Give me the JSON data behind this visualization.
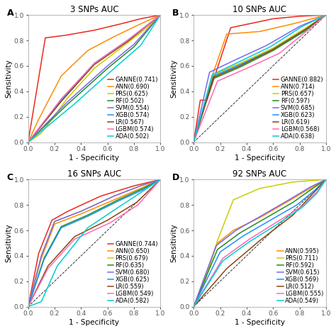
{
  "panels": [
    {
      "label": "A",
      "title": "3 SNPs AUC",
      "has_diagonal": false,
      "curves": [
        {
          "name": "GANNE(0.741)",
          "color": "#e8291c",
          "x": [
            0,
            0.13,
            0.28,
            0.5,
            0.7,
            0.85,
            1.0
          ],
          "y": [
            0,
            0.82,
            0.84,
            0.88,
            0.93,
            0.97,
            1.0
          ]
        },
        {
          "name": "ANN(0.690)",
          "color": "#ff8c00",
          "x": [
            0,
            0.08,
            0.25,
            0.45,
            0.65,
            0.85,
            1.0
          ],
          "y": [
            0,
            0.18,
            0.52,
            0.72,
            0.83,
            0.93,
            1.0
          ]
        },
        {
          "name": "PRS(0.625)",
          "color": "#cccc00",
          "x": [
            0,
            0.1,
            0.3,
            0.5,
            0.7,
            0.9,
            1.0
          ],
          "y": [
            0,
            0.07,
            0.35,
            0.58,
            0.74,
            0.9,
            1.0
          ]
        },
        {
          "name": "RF(0.502)",
          "color": "#228b22",
          "x": [
            0,
            0.3,
            0.6,
            0.8,
            1.0
          ],
          "y": [
            0,
            0.3,
            0.58,
            0.75,
            1.0
          ]
        },
        {
          "name": "SVM(0.554)",
          "color": "#7b68ee",
          "x": [
            0,
            0.3,
            0.6,
            0.8,
            1.0
          ],
          "y": [
            0,
            0.32,
            0.6,
            0.77,
            1.0
          ]
        },
        {
          "name": "XGB(0.574)",
          "color": "#1e90ff",
          "x": [
            0,
            0.25,
            0.5,
            0.75,
            1.0
          ],
          "y": [
            0,
            0.33,
            0.62,
            0.8,
            1.0
          ]
        },
        {
          "name": "LR(0.567)",
          "color": "#8b4513",
          "x": [
            0,
            0.25,
            0.5,
            0.75,
            1.0
          ],
          "y": [
            0,
            0.32,
            0.61,
            0.79,
            1.0
          ]
        },
        {
          "name": "LGBM(0.574)",
          "color": "#ff69b4",
          "x": [
            0,
            0.25,
            0.5,
            0.75,
            1.0
          ],
          "y": [
            0,
            0.34,
            0.62,
            0.8,
            1.0
          ]
        },
        {
          "name": "ADA(0.502)",
          "color": "#00ced1",
          "x": [
            0,
            0.35,
            0.65,
            0.85,
            1.0
          ],
          "y": [
            0,
            0.3,
            0.58,
            0.76,
            1.0
          ]
        }
      ]
    },
    {
      "label": "B",
      "title": "10 SNPs AUC",
      "has_diagonal": true,
      "curves": [
        {
          "name": "GANNE(0.882)",
          "color": "#e8291c",
          "x": [
            0,
            0.05,
            0.1,
            0.28,
            0.6,
            0.8,
            1.0
          ],
          "y": [
            0,
            0.33,
            0.33,
            0.9,
            0.97,
            0.99,
            1.0
          ]
        },
        {
          "name": "ANN(0.714)",
          "color": "#ff8c00",
          "x": [
            0,
            0.15,
            0.25,
            0.5,
            0.75,
            1.0
          ],
          "y": [
            0,
            0.55,
            0.85,
            0.87,
            0.93,
            1.0
          ]
        },
        {
          "name": "PRS(0.657)",
          "color": "#cccc00",
          "x": [
            0,
            0.15,
            0.35,
            0.6,
            0.85,
            1.0
          ],
          "y": [
            0,
            0.53,
            0.62,
            0.74,
            0.9,
            1.0
          ]
        },
        {
          "name": "RF(0.597)",
          "color": "#228b22",
          "x": [
            0,
            0.15,
            0.35,
            0.6,
            0.85,
            1.0
          ],
          "y": [
            0,
            0.5,
            0.59,
            0.72,
            0.88,
            1.0
          ]
        },
        {
          "name": "SVM(0.685)",
          "color": "#7b68ee",
          "x": [
            0,
            0.12,
            0.3,
            0.55,
            0.8,
            1.0
          ],
          "y": [
            0,
            0.55,
            0.64,
            0.76,
            0.91,
            1.0
          ]
        },
        {
          "name": "XGB(0.623)",
          "color": "#1e90ff",
          "x": [
            0,
            0.15,
            0.35,
            0.6,
            0.85,
            1.0
          ],
          "y": [
            0,
            0.52,
            0.61,
            0.73,
            0.89,
            1.0
          ]
        },
        {
          "name": "LR(0.619)",
          "color": "#8b4513",
          "x": [
            0,
            0.15,
            0.35,
            0.6,
            0.85,
            1.0
          ],
          "y": [
            0,
            0.51,
            0.6,
            0.73,
            0.89,
            1.0
          ]
        },
        {
          "name": "LGBM(0.568)",
          "color": "#ff69b4",
          "x": [
            0,
            0.18,
            0.4,
            0.65,
            0.85,
            1.0
          ],
          "y": [
            0,
            0.48,
            0.58,
            0.7,
            0.87,
            1.0
          ]
        },
        {
          "name": "ADA(0.638)",
          "color": "#00ced1",
          "x": [
            0,
            0.14,
            0.32,
            0.58,
            0.82,
            1.0
          ],
          "y": [
            0,
            0.53,
            0.62,
            0.75,
            0.91,
            1.0
          ]
        }
      ]
    },
    {
      "label": "C",
      "title": "16 SNPs AUC",
      "has_diagonal": true,
      "curves": [
        {
          "name": "GANNE(0.744)",
          "color": "#e8291c",
          "x": [
            0,
            0.08,
            0.18,
            0.3,
            0.55,
            0.8,
            1.0
          ],
          "y": [
            0,
            0.42,
            0.68,
            0.75,
            0.87,
            0.95,
            1.0
          ]
        },
        {
          "name": "ANN(0.650)",
          "color": "#ff8c00",
          "x": [
            0,
            0.1,
            0.2,
            0.4,
            0.65,
            0.85,
            1.0
          ],
          "y": [
            0,
            0.38,
            0.65,
            0.73,
            0.84,
            0.93,
            1.0
          ]
        },
        {
          "name": "PRS(0.679)",
          "color": "#cccc00",
          "x": [
            0,
            0.1,
            0.2,
            0.4,
            0.65,
            0.85,
            1.0
          ],
          "y": [
            0,
            0.4,
            0.67,
            0.75,
            0.87,
            0.95,
            1.0
          ]
        },
        {
          "name": "RF(0.635)",
          "color": "#228b22",
          "x": [
            0,
            0.12,
            0.25,
            0.45,
            0.68,
            0.87,
            1.0
          ],
          "y": [
            0,
            0.38,
            0.63,
            0.72,
            0.84,
            0.93,
            1.0
          ]
        },
        {
          "name": "SVM(0.680)",
          "color": "#7b68ee",
          "x": [
            0,
            0.1,
            0.2,
            0.4,
            0.65,
            0.85,
            1.0
          ],
          "y": [
            0,
            0.4,
            0.67,
            0.75,
            0.87,
            0.95,
            1.0
          ]
        },
        {
          "name": "XGB(0.625)",
          "color": "#1e90ff",
          "x": [
            0,
            0.12,
            0.25,
            0.45,
            0.68,
            0.87,
            1.0
          ],
          "y": [
            0,
            0.37,
            0.62,
            0.71,
            0.83,
            0.92,
            1.0
          ]
        },
        {
          "name": "LR(0.559)",
          "color": "#8b4513",
          "x": [
            0,
            0.15,
            0.35,
            0.6,
            0.82,
            1.0
          ],
          "y": [
            0,
            0.32,
            0.55,
            0.68,
            0.82,
            1.0
          ]
        },
        {
          "name": "LGBM(0.549)",
          "color": "#ff69b4",
          "x": [
            0,
            0.15,
            0.35,
            0.62,
            0.83,
            1.0
          ],
          "y": [
            0,
            0.3,
            0.53,
            0.66,
            0.8,
            1.0
          ]
        },
        {
          "name": "ADA(0.582)",
          "color": "#00ced1",
          "x": [
            0,
            0.1,
            0.22,
            0.45,
            0.68,
            0.87,
            1.0
          ],
          "y": [
            0,
            0.04,
            0.32,
            0.62,
            0.78,
            0.91,
            1.0
          ]
        }
      ]
    },
    {
      "label": "D",
      "title": "92 SNPs AUC",
      "has_diagonal": true,
      "curves": [
        {
          "name": "ANN(0.595)",
          "color": "#ff8c00",
          "x": [
            0,
            0.18,
            0.3,
            0.5,
            0.7,
            0.88,
            1.0
          ],
          "y": [
            0,
            0.5,
            0.6,
            0.7,
            0.82,
            0.93,
            1.0
          ]
        },
        {
          "name": "PRS(0.711)",
          "color": "#cccc00",
          "x": [
            0,
            0.08,
            0.18,
            0.3,
            0.5,
            0.75,
            1.0
          ],
          "y": [
            0,
            0.18,
            0.52,
            0.84,
            0.93,
            0.98,
            1.0
          ]
        },
        {
          "name": "RF(0.592)",
          "color": "#228b22",
          "x": [
            0,
            0.18,
            0.35,
            0.55,
            0.75,
            0.9,
            1.0
          ],
          "y": [
            0,
            0.45,
            0.58,
            0.7,
            0.82,
            0.93,
            1.0
          ]
        },
        {
          "name": "SVM(0.615)",
          "color": "#7b68ee",
          "x": [
            0,
            0.17,
            0.32,
            0.52,
            0.72,
            0.88,
            1.0
          ],
          "y": [
            0,
            0.48,
            0.6,
            0.72,
            0.84,
            0.94,
            1.0
          ]
        },
        {
          "name": "XGB(0.569)",
          "color": "#1e90ff",
          "x": [
            0,
            0.2,
            0.38,
            0.58,
            0.78,
            0.92,
            1.0
          ],
          "y": [
            0,
            0.43,
            0.56,
            0.68,
            0.8,
            0.92,
            1.0
          ]
        },
        {
          "name": "LR(0.512)",
          "color": "#8b4513",
          "x": [
            0,
            0.25,
            0.5,
            0.75,
            1.0
          ],
          "y": [
            0,
            0.3,
            0.52,
            0.72,
            1.0
          ]
        },
        {
          "name": "LGBM(0.555)",
          "color": "#ff69b4",
          "x": [
            0,
            0.22,
            0.42,
            0.62,
            0.82,
            0.93,
            1.0
          ],
          "y": [
            0,
            0.38,
            0.53,
            0.66,
            0.79,
            0.9,
            1.0
          ]
        },
        {
          "name": "ADA(0.549)",
          "color": "#00ced1",
          "x": [
            0,
            0.22,
            0.42,
            0.62,
            0.82,
            0.93,
            1.0
          ],
          "y": [
            0,
            0.36,
            0.51,
            0.64,
            0.78,
            0.89,
            1.0
          ]
        }
      ]
    }
  ],
  "legend_fontsize": 6.0,
  "axis_label_fontsize": 7.5,
  "tick_fontsize": 6.5,
  "title_fontsize": 8.5,
  "line_width": 1.1,
  "background_color": "#ffffff"
}
